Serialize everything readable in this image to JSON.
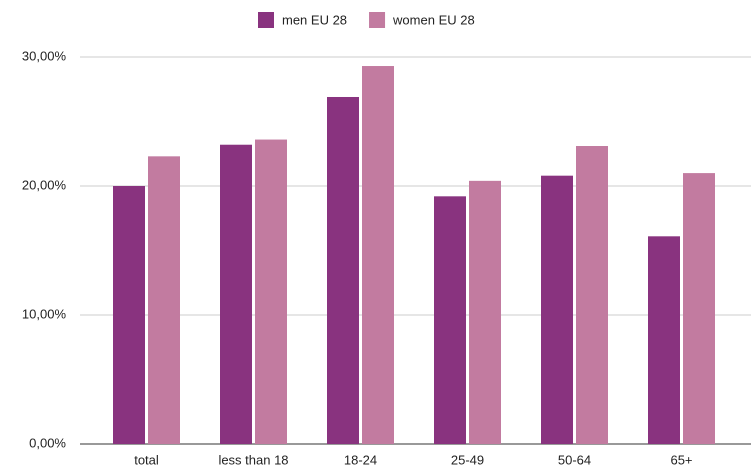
{
  "chart_data": {
    "type": "bar",
    "categories": [
      "total",
      "less than 18",
      "18-24",
      "25-49",
      "50-64",
      "65+"
    ],
    "series": [
      {
        "name": "men EU 28",
        "color": "#89337f",
        "values": [
          20.0,
          23.2,
          26.9,
          19.2,
          20.8,
          16.1
        ]
      },
      {
        "name": "women EU 28",
        "color": "#c27ba0",
        "values": [
          22.3,
          23.6,
          29.3,
          20.4,
          23.1,
          21.0
        ]
      }
    ],
    "ylim": [
      0,
      30
    ],
    "yticks": [
      {
        "value": 0,
        "label": "0,00%"
      },
      {
        "value": 10,
        "label": "10,00%"
      },
      {
        "value": 20,
        "label": "20,00%"
      },
      {
        "value": 30,
        "label": "30,00%"
      }
    ],
    "grid": true,
    "legend": "top"
  }
}
